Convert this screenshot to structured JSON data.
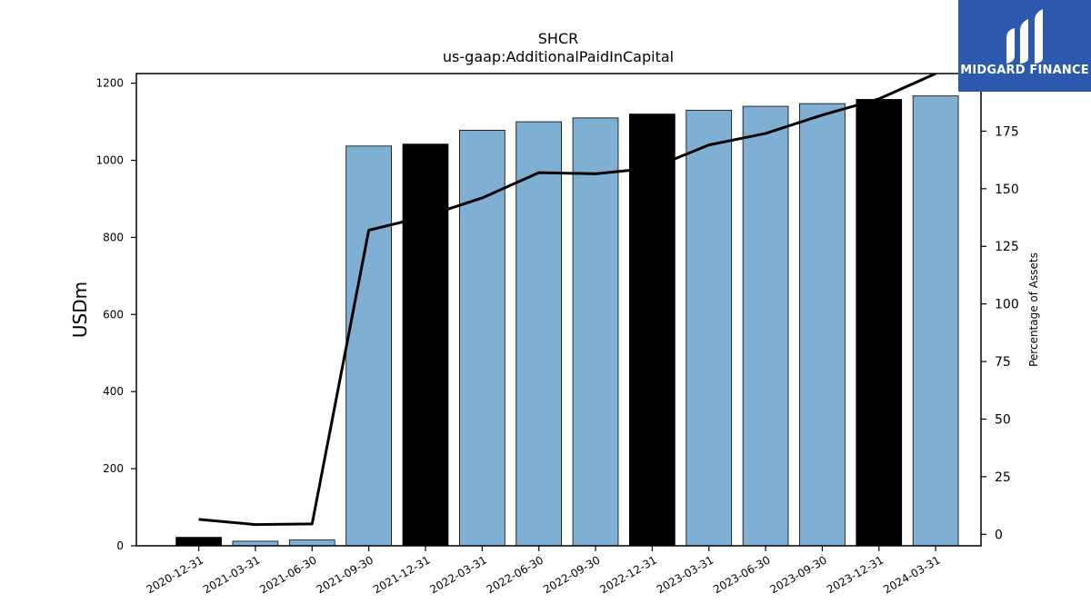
{
  "brand": {
    "name": "MIDGARD FINANCE",
    "bg_color": "#2c59ad",
    "logo_icon": "midgard-logo-icon"
  },
  "chart_data": {
    "type": "bar",
    "title": "SHCR",
    "subtitle": "us-gaap:AdditionalPaidInCapital",
    "ylabel": "USDm",
    "y2label": "Percentage of Assets",
    "categories": [
      "2020-12-31",
      "2021-03-31",
      "2021-06-30",
      "2021-09-30",
      "2021-12-31",
      "2022-03-31",
      "2022-06-30",
      "2022-09-30",
      "2022-12-31",
      "2023-03-31",
      "2023-06-30",
      "2023-09-30",
      "2023-12-31",
      "2024-03-31"
    ],
    "series": [
      {
        "type": "bar",
        "values": [
          22,
          12,
          15,
          1037,
          1042,
          1078,
          1100,
          1110,
          1120,
          1130,
          1140,
          1147,
          1158,
          1167
        ],
        "highlight": [
          true,
          false,
          false,
          false,
          true,
          false,
          false,
          false,
          true,
          false,
          false,
          false,
          true,
          false
        ]
      },
      {
        "type": "line",
        "axis": "right",
        "values": [
          6.5,
          4.2,
          4.5,
          132,
          138,
          146,
          157,
          156.5,
          159,
          169,
          174,
          182,
          189,
          200
        ]
      }
    ],
    "ylim": [
      0,
      1225
    ],
    "y2lim": [
      -5,
      200
    ],
    "yticks": [
      0,
      200,
      400,
      600,
      800,
      1000,
      1200
    ],
    "y2ticks": [
      0,
      25,
      50,
      75,
      100,
      125,
      150,
      175
    ],
    "colors": {
      "bar": "#7fafd3",
      "bar_highlight": "#000000",
      "line": "#000000"
    },
    "grid": false
  }
}
